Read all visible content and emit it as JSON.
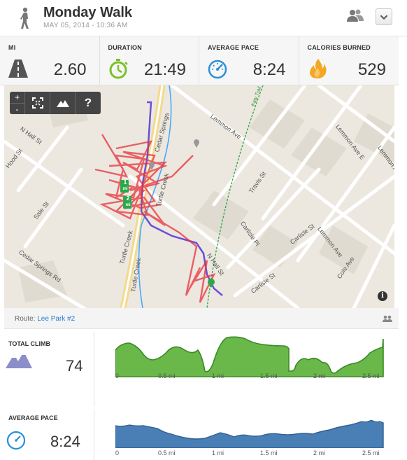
{
  "header": {
    "title": "Monday Walk",
    "subtitle": "MAY 05, 2014  -  10:36 AM"
  },
  "stats": [
    {
      "label": "MI",
      "value": "2.60",
      "icon": "road-icon"
    },
    {
      "label": "DURATION",
      "value": "21:49",
      "icon": "stopwatch-icon"
    },
    {
      "label": "AVERAGE PACE",
      "value": "8:24",
      "icon": "speedometer-icon"
    },
    {
      "label": "CALORIES BURNED",
      "value": "529",
      "icon": "flame-icon"
    }
  ],
  "map": {
    "controls": {
      "zoom_in": "+",
      "zoom_out": "-",
      "help": "?"
    },
    "streets": [
      "N Hall St",
      "Hood St",
      "Sale St",
      "Cedar Springs Rd",
      "Turtle Creek",
      "Turtle Creek",
      "Cedar Springs",
      "Turtle Creek",
      "Lemmon Ave",
      "Lemmon Ave E",
      "Lemmon Ave",
      "Travis St",
      "Carlisle Pl",
      "Carlisle St",
      "Carlisle St",
      "N Hall St",
      "Cole Ave",
      "Lemmon Ave",
      "Katy Trail"
    ],
    "markers": [
      {
        "label": "1",
        "unit": "mi"
      },
      {
        "label": "2",
        "unit": "mi"
      }
    ],
    "info": "i",
    "colors": {
      "route": "#e8323c",
      "route_alt": "#6a4fd8",
      "creek": "#4aa8ff",
      "trail": "#3aa64a",
      "mile_marker": "#2aa84a"
    }
  },
  "route": {
    "prefix": "Route:",
    "name": "Lee Park #2"
  },
  "climb": {
    "label": "TOTAL CLIMB",
    "value": "74",
    "ticks": [
      "0",
      "0.5 mi",
      "1 mi",
      "1.5 mi",
      "2 mi",
      "2.5 mi"
    ],
    "color": "#5aa83c"
  },
  "pace": {
    "label": "AVERAGE PACE",
    "value": "8:24",
    "ticks": [
      "0",
      "0.5 mi",
      "1 mi",
      "1.5 mi",
      "2 mi",
      "2.5 mi"
    ],
    "color": "#4a7fb5"
  }
}
